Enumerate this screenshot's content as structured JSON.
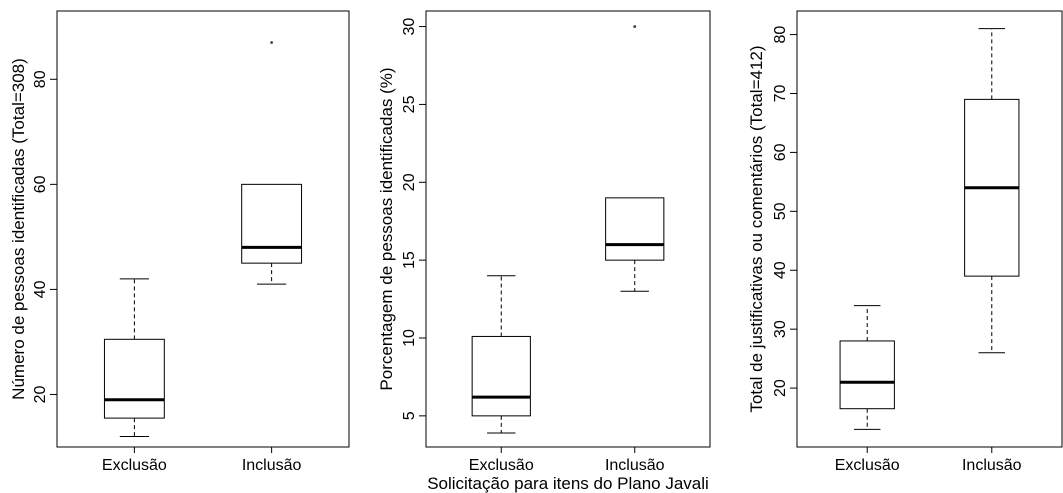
{
  "chart_data": [
    {
      "type": "boxplot",
      "ylabel": "Número de pessoas identificadas (Total=308)",
      "xlabel": "",
      "categories": [
        "Exclusão",
        "Inclusão"
      ],
      "yticks": [
        20,
        40,
        60,
        80
      ],
      "ylim": [
        10,
        93
      ],
      "boxes": [
        {
          "name": "Exclusão",
          "min": 12,
          "q1": 15.5,
          "median": 19,
          "q3": 30.5,
          "max": 42,
          "outliers": []
        },
        {
          "name": "Inclusão",
          "min": 41,
          "q1": 45,
          "median": 48,
          "q3": 60,
          "max": 60,
          "outliers": [
            87
          ]
        }
      ]
    },
    {
      "type": "boxplot",
      "ylabel": "Porcentagem de pessoas identificadas (%)",
      "xlabel": "Solicitação para itens do Plano Javali",
      "categories": [
        "Exclusão",
        "Inclusão"
      ],
      "yticks": [
        5,
        10,
        15,
        20,
        25,
        30
      ],
      "ylim": [
        3,
        31
      ],
      "boxes": [
        {
          "name": "Exclusão",
          "min": 3.9,
          "q1": 5,
          "median": 6.2,
          "q3": 10.1,
          "max": 14,
          "outliers": []
        },
        {
          "name": "Inclusão",
          "min": 13,
          "q1": 15,
          "median": 16,
          "q3": 19,
          "max": 19,
          "outliers": [
            30
          ]
        }
      ]
    },
    {
      "type": "boxplot",
      "ylabel": "Total de justificativas ou comentários (Total=412)",
      "xlabel": "",
      "categories": [
        "Exclusão",
        "Inclusão"
      ],
      "yticks": [
        20,
        30,
        40,
        50,
        60,
        70,
        80
      ],
      "ylim": [
        10,
        84
      ],
      "boxes": [
        {
          "name": "Exclusão",
          "min": 13,
          "q1": 16.5,
          "median": 21,
          "q3": 28,
          "max": 34,
          "outliers": []
        },
        {
          "name": "Inclusão",
          "min": 26,
          "q1": 39,
          "median": 54,
          "q3": 69,
          "max": 81,
          "outliers": []
        }
      ]
    }
  ]
}
